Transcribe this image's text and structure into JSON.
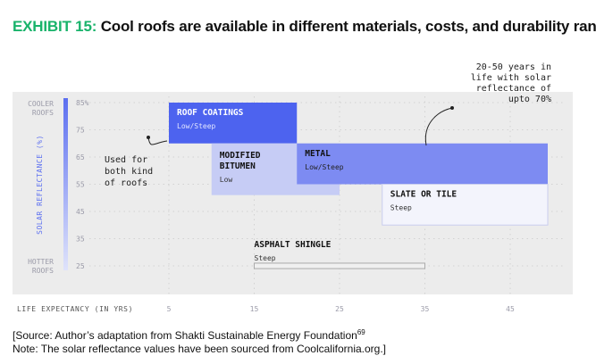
{
  "title": {
    "exhibit": "EXHIBIT 15:",
    "text": "Cool roofs are available in different materials, costs, and durability range"
  },
  "colors": {
    "accent_green": "#19b36b",
    "plot_bg": "#ececec",
    "scale_bar": "#5c6ff0",
    "roof_coatings": "#4d63ef",
    "modified_bitumen": "#c6ccf5",
    "metal": "#7d8bf2",
    "slate_or_tile": "#f3f4fc",
    "asphalt_shingle": "#f0f0f0"
  },
  "chart_data": {
    "type": "range-box",
    "xlabel": "LIFE EXPECTANCY (IN YRS)",
    "ylabel": "SOLAR REFLECTANCE (%)",
    "xlim": [
      0,
      48
    ],
    "ylim": [
      22,
      86
    ],
    "x_ticks": [
      5,
      15,
      25,
      35,
      45
    ],
    "y_ticks": [
      25,
      35,
      45,
      55,
      65,
      75
    ],
    "y_tick_top_label": "85%",
    "y_top_category": [
      "COOLER",
      "ROOFS"
    ],
    "y_bottom_category": [
      "HOTTER",
      "ROOFS"
    ],
    "grid": true,
    "series": [
      {
        "name": "ROOF COATINGS",
        "subtitle": "Low/Steep",
        "x": [
          5,
          20
        ],
        "y": [
          70,
          85
        ]
      },
      {
        "name": "MODIFIED BITUMEN",
        "subtitle": "Low",
        "x": [
          10,
          25
        ],
        "y": [
          51,
          70
        ]
      },
      {
        "name": "METAL",
        "subtitle": "Low/Steep",
        "x": [
          20,
          50
        ],
        "y": [
          55,
          70
        ]
      },
      {
        "name": "SLATE OR TILE",
        "subtitle": "Steep",
        "x": [
          30,
          50
        ],
        "y": [
          40,
          55
        ]
      },
      {
        "name": "ASPHALT SHINGLE",
        "subtitle": "Steep",
        "x": [
          15,
          35
        ],
        "y": [
          24,
          26
        ]
      }
    ],
    "annotations": [
      {
        "text": [
          "Used for",
          "both kind",
          "of roofs"
        ]
      },
      {
        "text": [
          "20-50 years in",
          "life with solar",
          "reflectance of",
          "upto 70%"
        ]
      }
    ]
  },
  "source": {
    "line1": "[Source: Author’s adaptation from Shakti Sustainable Energy Foundation",
    "line1_sup": "69",
    "line2": "Note: The solar reflectance values have been sourced from Coolcalifornia.org.]"
  }
}
